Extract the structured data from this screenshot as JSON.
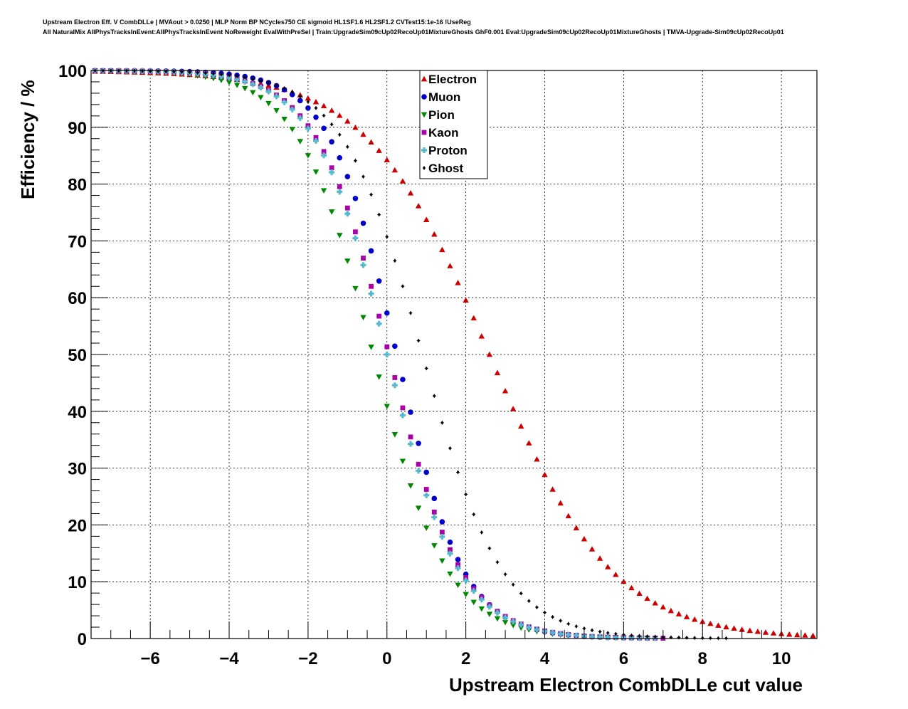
{
  "title_lines": [
    "Upstream Electron Eff. V CombDLLe | MVAout > 0.0250 | MLP Norm BP NCycles750 CE sigmoid HL1SF1.6 HL2SF1.2 CVTest15:1e-16 !UseReg",
    "All NaturalMix AllPhysTracksInEvent:AllPhysTracksInEvent NoReweight EvalWithPreSel | Train:UpgradeSim09cUp02RecoUp01MixtureGhosts GhF0.001 Eval:UpgradeSim09cUp02RecoUp01MixtureGhosts | TMVA-Upgrade-Sim09cUp02RecoUp01"
  ],
  "chart_data": {
    "type": "scatter",
    "xlabel": "Upstream Electron CombDLLe cut value",
    "ylabel": "Efficiency / %",
    "xlim": [
      -7.5,
      10.9
    ],
    "ylim": [
      0,
      100
    ],
    "x_ticks": [
      -6,
      -4,
      -2,
      0,
      2,
      4,
      6,
      8,
      10
    ],
    "x_tick_labels": [
      "−6",
      "−4",
      "−2",
      "0",
      "2",
      "4",
      "6",
      "8",
      "10"
    ],
    "y_ticks": [
      0,
      10,
      20,
      30,
      40,
      50,
      60,
      70,
      80,
      90,
      100
    ],
    "y_tick_labels": [
      "0",
      "10",
      "20",
      "30",
      "40",
      "50",
      "60",
      "70",
      "80",
      "90",
      "100"
    ],
    "grid": true,
    "legend_position": "top-center",
    "x_bin_start": -7.4,
    "x_bin_step": 0.2,
    "series": [
      {
        "name": "Electron",
        "marker": "triangle-up",
        "color": "#cc0000",
        "midpoint": 2.6,
        "scale": 1.55
      },
      {
        "name": "Muon",
        "marker": "circle",
        "color": "#0000cc",
        "midpoint": 0.25,
        "scale": 0.85
      },
      {
        "name": "Pion",
        "marker": "triangle-down",
        "color": "#008800",
        "midpoint": -0.35,
        "scale": 0.95
      },
      {
        "name": "Kaon",
        "marker": "square",
        "color": "#aa00aa",
        "midpoint": 0.05,
        "scale": 0.92
      },
      {
        "name": "Proton",
        "marker": "cross",
        "color": "#55bbcc",
        "midpoint": 0.0,
        "scale": 0.92
      },
      {
        "name": "Ghost",
        "marker": "diamond",
        "color": "#000000",
        "midpoint": 0.9,
        "scale": 1.02
      }
    ]
  }
}
